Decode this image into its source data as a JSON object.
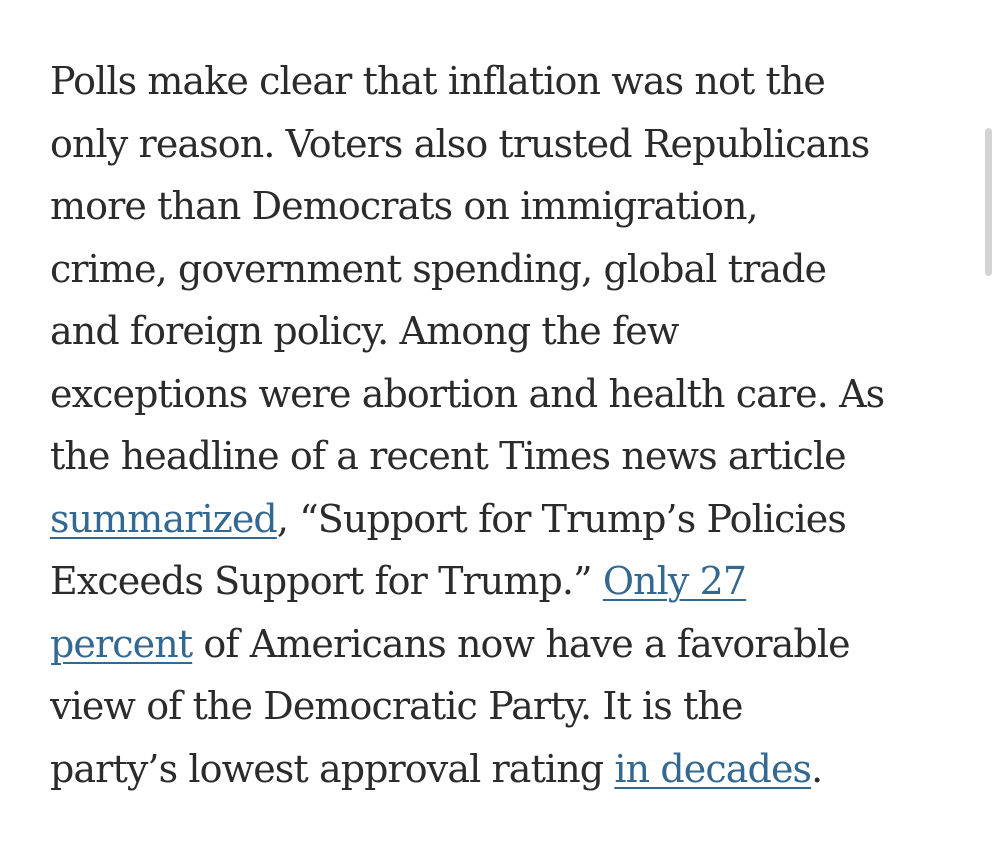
{
  "article": {
    "lines": [
      {
        "text": "Polls make clear that inflation was not the"
      },
      {
        "text": "only reason. Voters also trusted Republicans"
      },
      {
        "text": "more than Democrats on immigration,"
      },
      {
        "text": "crime, government spending, global trade"
      },
      {
        "text": "and foreign policy. Among the few"
      },
      {
        "text": "exceptions were abortion and health care. As"
      },
      {
        "text": "the headline of a recent Times news article"
      },
      {
        "link": "summarized",
        "after": ", “Support for Trump’s Policies"
      },
      {
        "before": "Exceeds Support for Trump.” ",
        "link": "Only 27"
      },
      {
        "link": "percent",
        "after": " of Americans now have a favorable"
      },
      {
        "text": "view of the Democratic Party. It is the"
      },
      {
        "before": "party’s lowest approval rating ",
        "link": "in decades",
        "after": "."
      }
    ]
  },
  "colors": {
    "text": "#2b2b2b",
    "link": "#326891",
    "background": "#ffffff",
    "scrollbar": "#d4d4d4"
  }
}
